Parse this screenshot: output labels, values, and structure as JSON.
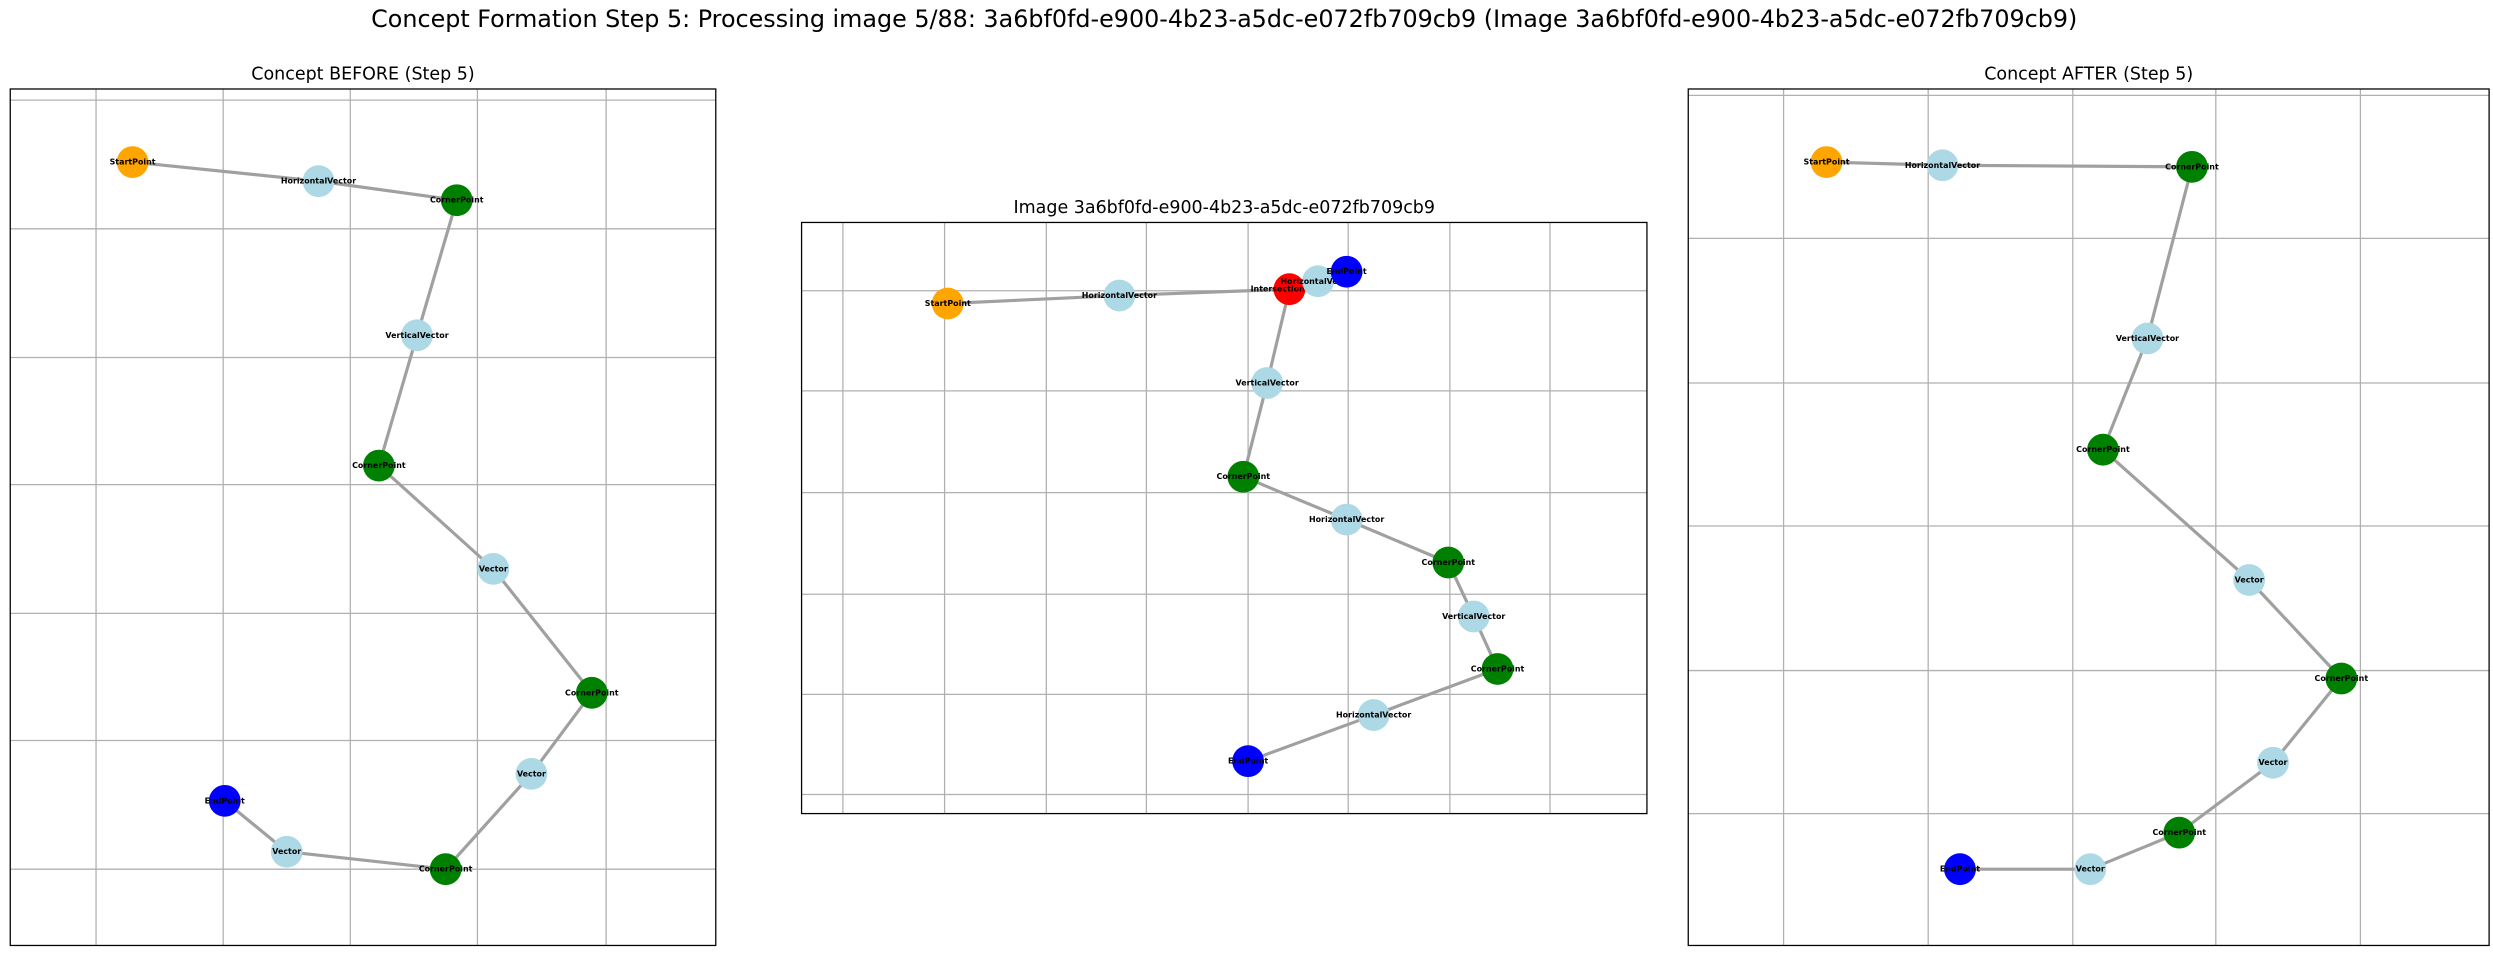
{
  "title": "Concept Formation Step 5: Processing image 5/88: 3a6bf0fd-e900-4b23-a5dc-e072fb709cb9 (Image 3a6bf0fd-e900-4b23-a5dc-e072fb709cb9)",
  "panels": [
    {
      "title": "Concept BEFORE (Step 5)",
      "nodes": [
        {
          "label": "StartPoint",
          "color": "orange"
        },
        {
          "label": "HorizontalVector",
          "color": "lightblue"
        },
        {
          "label": "CornerPoint",
          "color": "green"
        },
        {
          "label": "VerticalVector",
          "color": "lightblue"
        },
        {
          "label": "CornerPoint",
          "color": "green"
        },
        {
          "label": "Vector",
          "color": "lightblue"
        },
        {
          "label": "CornerPoint",
          "color": "green"
        },
        {
          "label": "Vector",
          "color": "lightblue"
        },
        {
          "label": "CornerPoint",
          "color": "green"
        },
        {
          "label": "Vector",
          "color": "lightblue"
        },
        {
          "label": "EndPoint",
          "color": "blue"
        }
      ]
    },
    {
      "title": "Image 3a6bf0fd-e900-4b23-a5dc-e072fb709cb9",
      "nodes": [
        {
          "label": "StartPoint",
          "color": "orange"
        },
        {
          "label": "HorizontalVector",
          "color": "lightblue"
        },
        {
          "label": "IntersectionPoint",
          "color": "red"
        },
        {
          "label": "HorizontalVector",
          "color": "lightblue"
        },
        {
          "label": "EndPoint",
          "color": "blue"
        },
        {
          "label": "VerticalVector",
          "color": "lightblue"
        },
        {
          "label": "CornerPoint",
          "color": "green"
        },
        {
          "label": "HorizontalVector",
          "color": "lightblue"
        },
        {
          "label": "CornerPoint",
          "color": "green"
        },
        {
          "label": "VerticalVector",
          "color": "lightblue"
        },
        {
          "label": "CornerPoint",
          "color": "green"
        },
        {
          "label": "HorizontalVector",
          "color": "lightblue"
        },
        {
          "label": "EndPoint",
          "color": "blue"
        }
      ]
    },
    {
      "title": "Concept AFTER (Step 5)",
      "nodes": [
        {
          "label": "StartPoint",
          "color": "orange"
        },
        {
          "label": "HorizontalVector",
          "color": "lightblue"
        },
        {
          "label": "CornerPoint",
          "color": "green"
        },
        {
          "label": "VerticalVector",
          "color": "lightblue"
        },
        {
          "label": "CornerPoint",
          "color": "green"
        },
        {
          "label": "Vector",
          "color": "lightblue"
        },
        {
          "label": "CornerPoint",
          "color": "green"
        },
        {
          "label": "Vector",
          "color": "lightblue"
        },
        {
          "label": "CornerPoint",
          "color": "green"
        },
        {
          "label": "Vector",
          "color": "lightblue"
        },
        {
          "label": "EndPoint",
          "color": "blue"
        }
      ]
    }
  ]
}
